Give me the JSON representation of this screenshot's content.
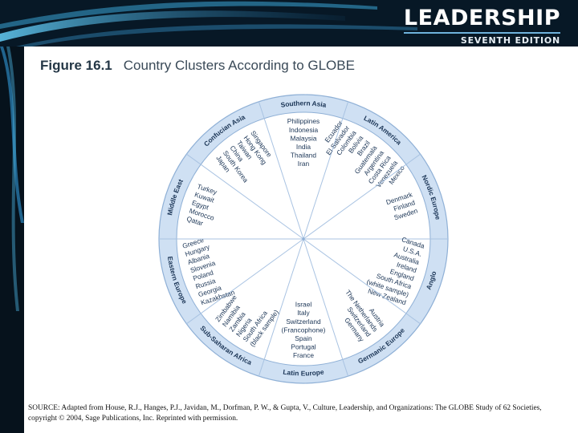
{
  "header": {
    "brand_title": "LEADERSHIP",
    "brand_edition": "SEVENTH EDITION"
  },
  "figure": {
    "number": "Figure 16.1",
    "title": "Country Clusters According to GLOBE"
  },
  "diagram": {
    "clusters": [
      {
        "name": "Southern Asia",
        "countries": [
          "Philippines",
          "Indonesia",
          "Malaysia",
          "India",
          "Thailand",
          "Iran"
        ]
      },
      {
        "name": "Latin America",
        "countries": [
          "Ecuador",
          "El Salvador",
          "Colombia",
          "Bolivia",
          "Brazil",
          "Guatemala",
          "Argentina",
          "Costa Rica",
          "Venezuela",
          "Mexico"
        ]
      },
      {
        "name": "Nordic Europe",
        "countries": [
          "Denmark",
          "Finland",
          "Sweden"
        ]
      },
      {
        "name": "Anglo",
        "countries": [
          "Canada",
          "U.S.A.",
          "Australia",
          "Ireland",
          "England",
          "South Africa",
          "(white sample)",
          "New Zealand"
        ]
      },
      {
        "name": "Germanic Europe",
        "countries": [
          "Austria",
          "The Netherlands",
          "Switzerland",
          "Germany"
        ]
      },
      {
        "name": "Latin Europe",
        "countries": [
          "Israel",
          "Italy",
          "Switzerland",
          "(Francophone)",
          "Spain",
          "Portugal",
          "France"
        ]
      },
      {
        "name": "Sub-Saharan Africa",
        "countries": [
          "Zimbabwe",
          "Namibia",
          "Zambia",
          "Nigeria",
          "South Africa",
          "(black sample)"
        ]
      },
      {
        "name": "Eastern Europe",
        "countries": [
          "Greece",
          "Hungary",
          "Albania",
          "Slovenia",
          "Poland",
          "Russia",
          "Georgia",
          "Kazakhstan"
        ]
      },
      {
        "name": "Middle East",
        "countries": [
          "Turkey",
          "Kuwait",
          "Egypt",
          "Morocco",
          "Qatar"
        ]
      },
      {
        "name": "Confucian Asia",
        "countries": [
          "Singapore",
          "Hong Kong",
          "Taiwan",
          "China",
          "South Korea",
          "Japan"
        ]
      }
    ]
  },
  "footer": {
    "source": "SOURCE: Adapted from House, R.J., Hanges, P.J., Javidan, M., Dorfman, P. W., & Gupta, V., Culture, Leadership, and Organizations: The GLOBE Study of 62 Societies, copyright © 2004, Sage Publications, Inc. Reprinted with permission."
  }
}
